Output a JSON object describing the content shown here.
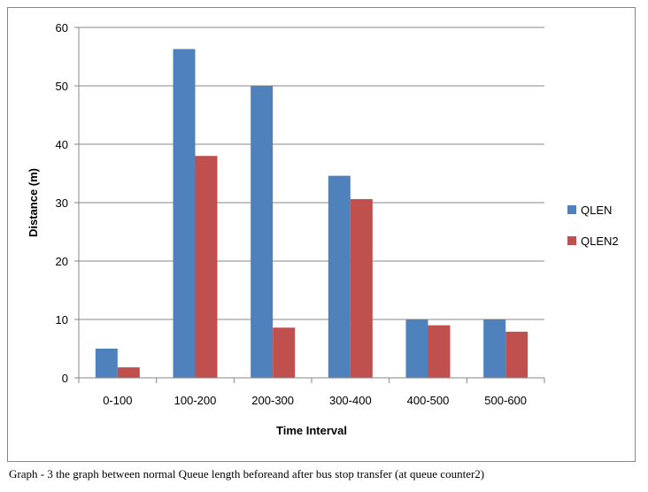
{
  "caption": "Graph - 3 the graph between normal Queue length beforeand after bus stop transfer (at queue counter2)",
  "chart_data": {
    "type": "bar",
    "title": "",
    "xlabel": "Time Interval",
    "ylabel": "Distance (m)",
    "categories": [
      "0-100",
      "100-200",
      "200-300",
      "300-400",
      "400-500",
      "500-600"
    ],
    "series": [
      {
        "name": "QLEN",
        "color": "#4F81BD",
        "values": [
          5,
          56.3,
          50,
          34.6,
          10,
          10
        ]
      },
      {
        "name": "QLEN2",
        "color": "#C0504D",
        "values": [
          1.8,
          38,
          8.6,
          30.6,
          9,
          7.9
        ]
      }
    ],
    "ylim": [
      0,
      60
    ],
    "yticks": [
      "0",
      "10",
      "20",
      "30",
      "40",
      "50",
      "60"
    ],
    "grid": true,
    "legend_position": "right"
  }
}
